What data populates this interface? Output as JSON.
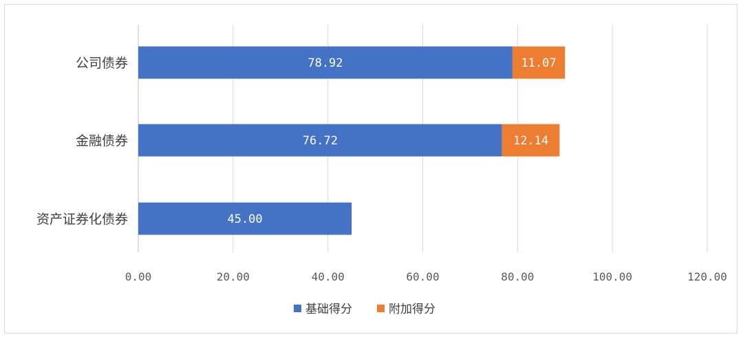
{
  "chart_data": {
    "type": "bar",
    "orientation": "horizontal",
    "stacked": true,
    "categories": [
      "公司债券",
      "金融债券",
      "资产证券化债券"
    ],
    "series": [
      {
        "name": "基础得分",
        "values": [
          78.92,
          76.72,
          45.0
        ],
        "labels": [
          "78.92",
          "76.72",
          "45.00"
        ],
        "color": "#4472c4"
      },
      {
        "name": "附加得分",
        "values": [
          11.07,
          12.14,
          0
        ],
        "labels": [
          "11.07",
          "12.14",
          ""
        ],
        "color": "#ed7d31"
      }
    ],
    "xlim": [
      0,
      120
    ],
    "xticks": [
      0,
      20,
      40,
      60,
      80,
      100,
      120
    ],
    "xtick_labels": [
      "0.00",
      "20.00",
      "40.00",
      "60.00",
      "80.00",
      "100.00",
      "120.00"
    ],
    "grid": true,
    "legend_position": "bottom",
    "title": "",
    "xlabel": "",
    "ylabel": ""
  }
}
